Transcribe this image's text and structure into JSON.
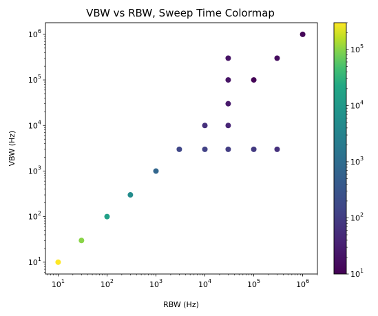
{
  "chart_data": {
    "type": "scatter",
    "title": "VBW vs RBW, Sweep Time Colormap",
    "xlabel": "RBW (Hz)",
    "ylabel": "VBW (Hz)",
    "xscale": "log",
    "yscale": "log",
    "xlim": [
      5.5,
      2000000
    ],
    "ylim": [
      5.5,
      1800000
    ],
    "x_ticks": [
      {
        "value": 10,
        "base": "10",
        "exp": "1"
      },
      {
        "value": 100,
        "base": "10",
        "exp": "2"
      },
      {
        "value": 1000,
        "base": "10",
        "exp": "3"
      },
      {
        "value": 10000,
        "base": "10",
        "exp": "4"
      },
      {
        "value": 100000,
        "base": "10",
        "exp": "5"
      },
      {
        "value": 1000000,
        "base": "10",
        "exp": "6"
      }
    ],
    "y_ticks": [
      {
        "value": 10,
        "base": "10",
        "exp": "1"
      },
      {
        "value": 100,
        "base": "10",
        "exp": "2"
      },
      {
        "value": 1000,
        "base": "10",
        "exp": "3"
      },
      {
        "value": 10000,
        "base": "10",
        "exp": "4"
      },
      {
        "value": 100000,
        "base": "10",
        "exp": "5"
      },
      {
        "value": 1000000,
        "base": "10",
        "exp": "6"
      }
    ],
    "colorbar": {
      "colormap": "viridis",
      "scale": "log",
      "range": [
        10,
        300000
      ],
      "ticks": [
        {
          "value": 10,
          "base": "10",
          "exp": "1"
        },
        {
          "value": 100,
          "base": "10",
          "exp": "2"
        },
        {
          "value": 1000,
          "base": "10",
          "exp": "3"
        },
        {
          "value": 10000,
          "base": "10",
          "exp": "4"
        },
        {
          "value": 100000,
          "base": "10",
          "exp": "5"
        }
      ]
    },
    "points": [
      {
        "x": 10,
        "y": 10,
        "c": 300000
      },
      {
        "x": 30,
        "y": 30,
        "c": 100000
      },
      {
        "x": 100,
        "y": 100,
        "c": 15000
      },
      {
        "x": 300,
        "y": 300,
        "c": 5000
      },
      {
        "x": 1000,
        "y": 1000,
        "c": 700
      },
      {
        "x": 3000,
        "y": 3000,
        "c": 150
      },
      {
        "x": 10000,
        "y": 3000,
        "c": 120
      },
      {
        "x": 10000,
        "y": 10000,
        "c": 60
      },
      {
        "x": 30000,
        "y": 3000,
        "c": 100
      },
      {
        "x": 30000,
        "y": 10000,
        "c": 40
      },
      {
        "x": 30000,
        "y": 30000,
        "c": 25
      },
      {
        "x": 30000,
        "y": 100000,
        "c": 20
      },
      {
        "x": 30000,
        "y": 300000,
        "c": 20
      },
      {
        "x": 100000,
        "y": 3000,
        "c": 90
      },
      {
        "x": 100000,
        "y": 100000,
        "c": 11
      },
      {
        "x": 300000,
        "y": 3000,
        "c": 60
      },
      {
        "x": 300000,
        "y": 300000,
        "c": 15
      },
      {
        "x": 1000000,
        "y": 1000000,
        "c": 12
      }
    ]
  }
}
